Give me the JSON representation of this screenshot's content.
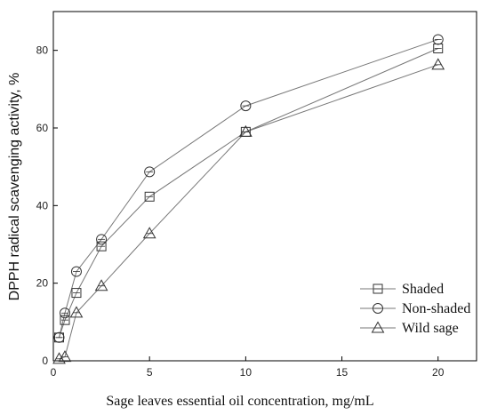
{
  "chart_data": {
    "type": "line",
    "title": "",
    "xlabel": "Sage leaves essential oil concentration, mg/mL",
    "ylabel": "DPPH radical scavenging activity, %",
    "xlim": [
      0,
      22
    ],
    "ylim": [
      0,
      90
    ],
    "x_ticks": [
      0,
      5,
      10,
      15,
      20
    ],
    "y_ticks": [
      0,
      20,
      40,
      60,
      80
    ],
    "grid": false,
    "legend_position": "bottom-right",
    "series": [
      {
        "name": "Shaded",
        "marker": "square",
        "x": [
          0.3,
          0.6,
          1.2,
          2.5,
          5,
          10,
          20
        ],
        "y": [
          6,
          10.5,
          17.5,
          29.5,
          42.3,
          59,
          80.5
        ]
      },
      {
        "name": "Non-shaded",
        "marker": "circle",
        "x": [
          0.3,
          0.6,
          1.2,
          2.5,
          5,
          10,
          20
        ],
        "y": [
          6,
          12.3,
          23,
          31.3,
          48.7,
          65.7,
          82.8
        ]
      },
      {
        "name": "Wild sage",
        "marker": "triangle",
        "x": [
          0.3,
          0.6,
          1.2,
          2.5,
          5,
          10,
          20
        ],
        "y": [
          0.5,
          1,
          12.4,
          19.3,
          32.8,
          59,
          76.3
        ]
      }
    ]
  }
}
